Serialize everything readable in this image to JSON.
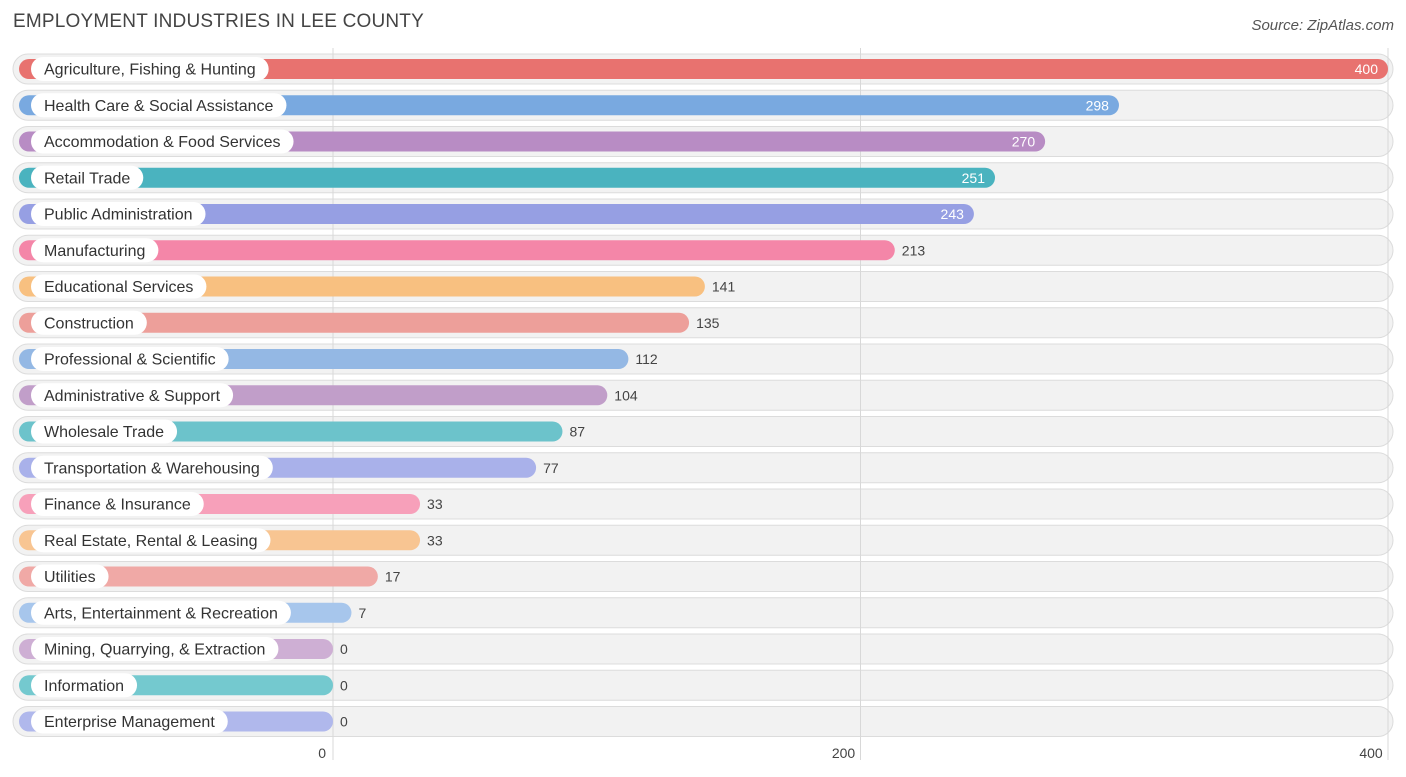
{
  "header": {
    "title": "EMPLOYMENT INDUSTRIES IN LEE COUNTY",
    "source": "Source: ZipAtlas.com"
  },
  "chart_data": {
    "type": "bar",
    "orientation": "horizontal",
    "title": "EMPLOYMENT INDUSTRIES IN LEE COUNTY",
    "xlabel": "",
    "ylabel": "",
    "xlim": [
      0,
      400
    ],
    "xticks": [
      0,
      200,
      400
    ],
    "grid": true,
    "categories": [
      "Agriculture, Fishing & Hunting",
      "Health Care & Social Assistance",
      "Accommodation & Food Services",
      "Retail Trade",
      "Public Administration",
      "Manufacturing",
      "Educational Services",
      "Construction",
      "Professional & Scientific",
      "Administrative & Support",
      "Wholesale Trade",
      "Transportation & Warehousing",
      "Finance & Insurance",
      "Real Estate, Rental & Leasing",
      "Utilities",
      "Arts, Entertainment & Recreation",
      "Mining, Quarrying, & Extraction",
      "Information",
      "Enterprise Management"
    ],
    "values": [
      400,
      298,
      270,
      251,
      243,
      213,
      141,
      135,
      112,
      104,
      87,
      77,
      33,
      33,
      17,
      7,
      0,
      0,
      0
    ],
    "colors": [
      "#e8726f",
      "#79a9e0",
      "#b88cc4",
      "#4ab3bf",
      "#969fe3",
      "#f486a8",
      "#f8c080",
      "#ed9f9a",
      "#94b8e4",
      "#c19ec9",
      "#6cc3cb",
      "#a9b1ea",
      "#f7a0ba",
      "#f8c592",
      "#f0a9a6",
      "#a7c6ec",
      "#ceafd4",
      "#74c9cf",
      "#b0b8ec"
    ]
  }
}
